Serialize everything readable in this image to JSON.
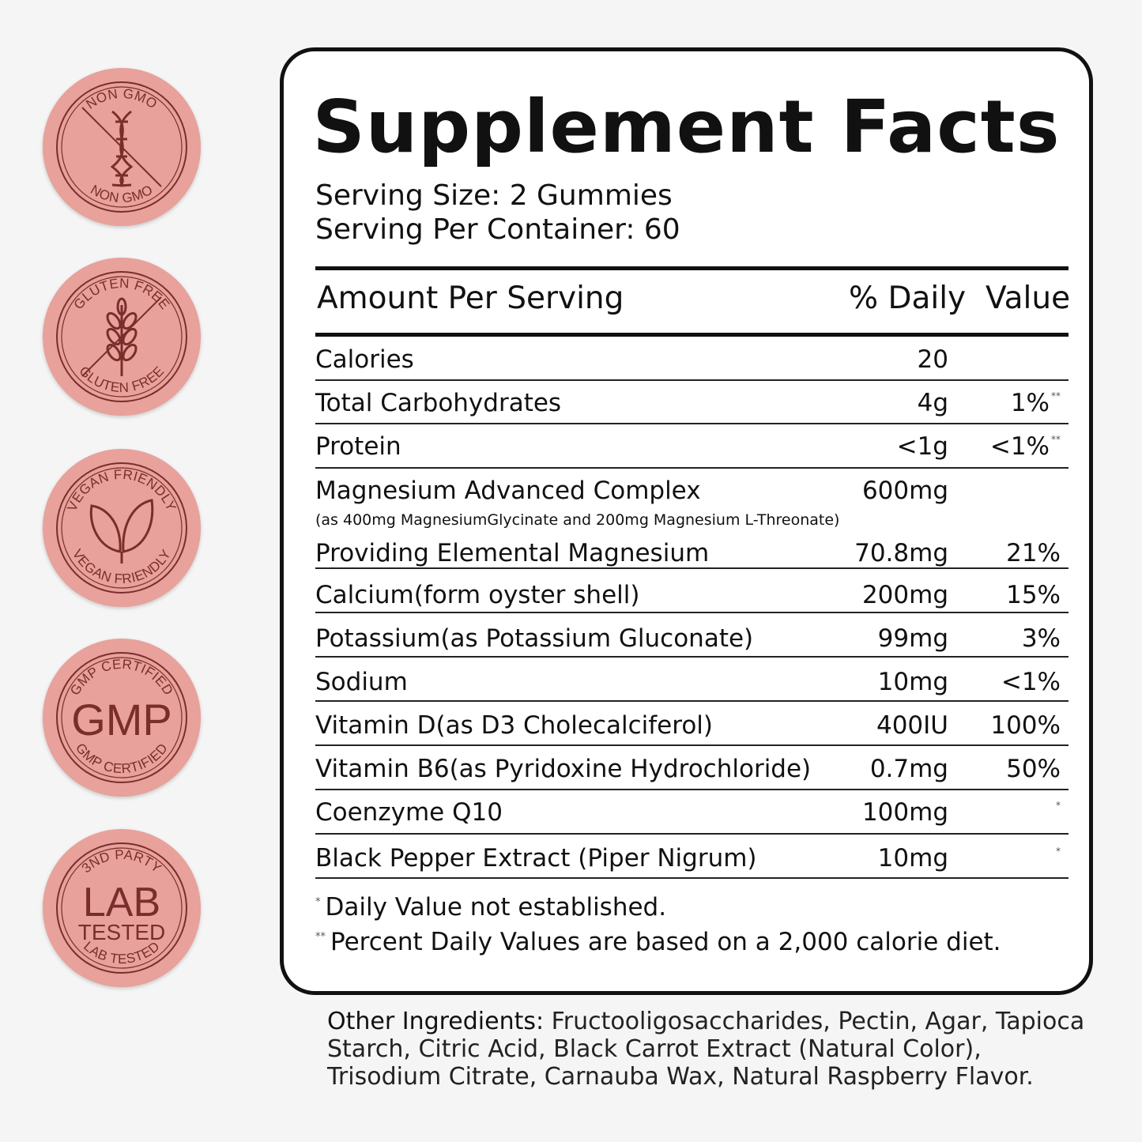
{
  "badges": [
    {
      "top_text": "NON GMO",
      "bottom_text": "NON GMO",
      "icon": "dna-icon"
    },
    {
      "top_text": "GLUTEN FREE",
      "bottom_text": "GLUTEN FREE",
      "icon": "wheat-icon"
    },
    {
      "top_text": "VEGAN FRIENDLY",
      "bottom_text": "VEGAN FRIENDLY",
      "icon": "leaf-icon"
    },
    {
      "top_text": "GMP CERTIFIED",
      "bottom_text": "GMP CERTIFIED",
      "center_text": "GMP"
    },
    {
      "top_text": "3ND PARTY",
      "bottom_text": "LAB TESTED",
      "center_text": "LAB",
      "center_sub": "TESTED"
    }
  ],
  "facts": {
    "title": "Supplement Facts",
    "serving_size": "Serving Size: 2 Gummies",
    "servings_per_container": "Serving Per Container: 60",
    "header": {
      "amount": "Amount Per Serving",
      "daily": "% Daily",
      "value": "Value"
    },
    "rows": [
      {
        "name": "Calories",
        "amount": "20",
        "dv": "",
        "mark": ""
      },
      {
        "name": "Total Carbohydrates",
        "amount": "4g",
        "dv": "1%",
        "mark": "**"
      },
      {
        "name": "Protein",
        "amount": "<1g",
        "dv": "<1%",
        "mark": "**"
      },
      {
        "name": "Magnesium Advanced Complex",
        "amount": "600mg",
        "dv": "",
        "mark": "",
        "note": "(as 400mg MagnesiumGlycinate and 200mg Magnesium L-Threonate)"
      },
      {
        "name": "Providing Elemental Magnesium",
        "amount": "70.8mg",
        "dv": "21%",
        "mark": ""
      },
      {
        "name": "Calcium(form oyster shell)",
        "amount": "200mg",
        "dv": "15%",
        "mark": ""
      },
      {
        "name": "Potassium(as Potassium Gluconate)",
        "amount": "99mg",
        "dv": "3%",
        "mark": ""
      },
      {
        "name": "Sodium",
        "amount": "10mg",
        "dv": "<1%",
        "mark": ""
      },
      {
        "name": "Vitamin D(as D3 Cholecalciferol)",
        "amount": "400IU",
        "dv": "100%",
        "mark": ""
      },
      {
        "name": "Vitamin B6(as Pyridoxine Hydrochloride)",
        "amount": "0.7mg",
        "dv": "50%",
        "mark": ""
      },
      {
        "name": "Coenzyme Q10",
        "amount": "100mg",
        "dv": "",
        "mark": "*"
      },
      {
        "name": "Black Pepper Extract (Piper Nigrum)",
        "amount": "10mg",
        "dv": "",
        "mark": "*"
      }
    ],
    "footnotes": [
      {
        "mark": "*",
        "text": "Daily Value not established."
      },
      {
        "mark": "**",
        "text": "Percent Daily Values are based on a 2,000 calorie diet."
      }
    ]
  },
  "other_ingredients": {
    "label": "Other Ingredients:",
    "text": "Fructooligosaccharides, Pectin, Agar, Tapioca Starch, Citric Acid, Black Carrot Extract (Natural Color), Trisodium Citrate, Carnauba Wax, Natural Raspberry Flavor."
  },
  "colors": {
    "badge": "#e8a19b",
    "badge_ink": "#7a2e2c",
    "border": "#111111"
  }
}
